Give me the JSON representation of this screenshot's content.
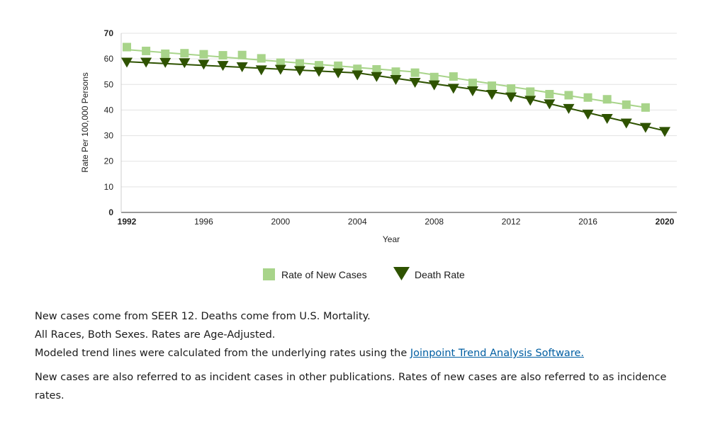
{
  "chart_data": {
    "type": "line",
    "title": "",
    "xlabel": "Year",
    "ylabel": "Rate Per 100,000 Persons",
    "xlim": [
      1992,
      2020
    ],
    "ylim": [
      0,
      70
    ],
    "x_ticks": [
      1992,
      1996,
      2000,
      2004,
      2008,
      2012,
      2016,
      2020
    ],
    "y_ticks": [
      0,
      10,
      20,
      30,
      40,
      50,
      60,
      70
    ],
    "grid": true,
    "legend_position": "bottom",
    "series": [
      {
        "name": "Rate of New Cases",
        "color": "#a8d48a",
        "marker": "square",
        "x": [
          1992,
          1993,
          1994,
          1995,
          1996,
          1997,
          1998,
          1999,
          2000,
          2001,
          2002,
          2003,
          2004,
          2005,
          2006,
          2007,
          2008,
          2009,
          2010,
          2011,
          2012,
          2013,
          2014,
          2015,
          2016,
          2017,
          2018,
          2019
        ],
        "values": [
          64.6,
          63.1,
          62.0,
          62.2,
          61.8,
          61.4,
          61.5,
          60.2,
          58.5,
          58.2,
          57.5,
          57.3,
          56.1,
          55.9,
          55.0,
          54.6,
          52.9,
          53.1,
          50.6,
          49.5,
          48.4,
          47.2,
          46.2,
          45.8,
          44.9,
          44.2,
          42.1,
          41.0
        ],
        "trend": [
          [
            1992,
            63.6
          ],
          [
            2007,
            54.9
          ],
          [
            2019,
            41.0
          ]
        ]
      },
      {
        "name": "Death Rate",
        "color": "#2e5200",
        "marker": "triangle-down",
        "x": [
          1992,
          1993,
          1994,
          1995,
          1996,
          1997,
          1998,
          1999,
          2000,
          2001,
          2002,
          2003,
          2004,
          2005,
          2006,
          2007,
          2008,
          2009,
          2010,
          2011,
          2012,
          2013,
          2014,
          2015,
          2016,
          2017,
          2018,
          2019,
          2020
        ],
        "values": [
          58.8,
          58.8,
          58.7,
          58.6,
          58.0,
          57.5,
          57.0,
          55.8,
          56.0,
          55.5,
          55.2,
          54.6,
          53.8,
          53.2,
          52.0,
          50.9,
          49.9,
          48.6,
          47.6,
          46.2,
          45.2,
          43.9,
          42.5,
          40.7,
          38.5,
          36.8,
          35.0,
          33.3,
          31.7
        ],
        "trend": [
          [
            1992,
            58.9
          ],
          [
            2004,
            54.5
          ],
          [
            2012,
            46.0
          ],
          [
            2020,
            31.9
          ]
        ]
      }
    ]
  },
  "notes": {
    "line1": "New cases come from SEER 12. Deaths come from U.S. Mortality.",
    "line2": "All Races, Both Sexes. Rates are Age-Adjusted.",
    "line3_prefix": "Modeled trend lines were calculated from the underlying rates using the ",
    "line3_link": "Joinpoint Trend Analysis Software.",
    "line4": "New cases are also referred to as incident cases in other publications. Rates of new cases are also referred to as incidence rates."
  }
}
